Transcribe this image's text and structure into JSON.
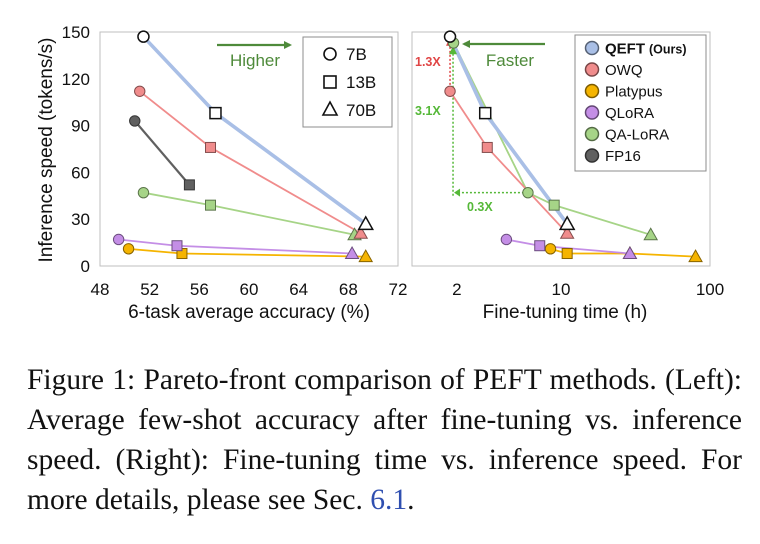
{
  "chart_data": [
    {
      "type": "scatter",
      "panel": "left",
      "xlabel": "6-task average accuracy (%)",
      "ylabel": "Inference speed (tokens/s)",
      "xlim": [
        48,
        72
      ],
      "ylim": [
        0,
        150
      ],
      "xticks": [
        "48",
        "52",
        "56",
        "60",
        "64",
        "68",
        "72"
      ],
      "yticks": [
        "0",
        "30",
        "60",
        "90",
        "120",
        "150"
      ],
      "series": [
        {
          "key": "QEFT",
          "color": "#a9bfe6",
          "points": [
            [
              51.5,
              147,
              "7B"
            ],
            [
              57.3,
              98,
              "13B"
            ],
            [
              69.4,
              27,
              "70B"
            ]
          ]
        },
        {
          "key": "OWQ",
          "color": "#f08c8c",
          "points": [
            [
              51.2,
              112,
              "7B"
            ],
            [
              56.9,
              76,
              "13B"
            ],
            [
              69.0,
              21,
              "70B"
            ]
          ]
        },
        {
          "key": "FP16",
          "color": "#606060",
          "points": [
            [
              50.8,
              93,
              "7B"
            ],
            [
              55.2,
              52,
              "13B"
            ]
          ]
        },
        {
          "key": "QA-LoRA",
          "color": "#a6d487",
          "points": [
            [
              51.5,
              47,
              "7B"
            ],
            [
              56.9,
              39,
              "13B"
            ],
            [
              68.5,
              20,
              "70B"
            ]
          ]
        },
        {
          "key": "QLoRA",
          "color": "#c48ee6",
          "points": [
            [
              49.5,
              17,
              "7B"
            ],
            [
              54.2,
              13,
              "13B"
            ],
            [
              68.3,
              8,
              "70B"
            ]
          ]
        },
        {
          "key": "Platypus",
          "color": "#f5b400",
          "points": [
            [
              50.3,
              11,
              "7B"
            ],
            [
              54.6,
              8,
              "13B"
            ],
            [
              69.4,
              6,
              "70B"
            ]
          ]
        }
      ],
      "annotations": [
        {
          "text": "Higher",
          "color": "#4e8a3a"
        }
      ],
      "size_legend": [
        {
          "marker": "circle",
          "label": "7B"
        },
        {
          "marker": "square",
          "label": "13B"
        },
        {
          "marker": "triangle",
          "label": "70B"
        }
      ]
    },
    {
      "type": "scatter",
      "panel": "right",
      "xlabel": "Fine-tuning time (h)",
      "xscale": "log",
      "xlim": [
        1,
        100
      ],
      "ylim": [
        0,
        150
      ],
      "xticks": [
        {
          "v": 2,
          "label": "2"
        },
        {
          "v": 10,
          "label": "10"
        },
        {
          "v": 100,
          "label": "100"
        }
      ],
      "series": [
        {
          "key": "QEFT",
          "color": "#a9bfe6",
          "points": [
            [
              1.8,
              147,
              "7B"
            ],
            [
              3.1,
              98,
              "13B"
            ],
            [
              11,
              27,
              "70B"
            ]
          ]
        },
        {
          "key": "OWQ",
          "color": "#f08c8c",
          "points": [
            [
              1.8,
              112,
              "7B"
            ],
            [
              3.2,
              76,
              "13B"
            ],
            [
              11,
              21,
              "70B"
            ]
          ]
        },
        {
          "key": "QA-LoRA",
          "color": "#a6d487",
          "points": [
            [
              1.9,
              143,
              "7B"
            ],
            [
              6,
              47,
              "7B"
            ],
            [
              9,
              39,
              "13B"
            ],
            [
              40,
              20,
              "70B"
            ]
          ]
        },
        {
          "key": "QLoRA",
          "color": "#c48ee6",
          "points": [
            [
              4.3,
              17,
              "7B"
            ],
            [
              7.2,
              13,
              "13B"
            ],
            [
              29,
              8,
              "70B"
            ]
          ]
        },
        {
          "key": "Platypus",
          "color": "#f5b400",
          "points": [
            [
              8.5,
              11,
              "7B"
            ],
            [
              11,
              8,
              "13B"
            ],
            [
              29,
              8,
              "70B"
            ],
            [
              80,
              6,
              "70B"
            ]
          ]
        }
      ],
      "annotations": [
        {
          "text": "Faster",
          "color": "#4e8a3a"
        },
        {
          "text": "1.3X",
          "color": "#e04545"
        },
        {
          "text": "3.1X",
          "color": "#55b838"
        },
        {
          "text": "0.3X",
          "color": "#55b838"
        }
      ],
      "legend": [
        {
          "key": "QEFT",
          "label": "QEFT",
          "suffix": "(Ours)",
          "color": "#a9bfe6"
        },
        {
          "key": "OWQ",
          "label": "OWQ",
          "color": "#f08c8c"
        },
        {
          "key": "Platypus",
          "label": "Platypus",
          "color": "#f5b400"
        },
        {
          "key": "QLoRA",
          "label": "QLoRA",
          "color": "#c48ee6"
        },
        {
          "key": "QA-LoRA",
          "label": "QA-LoRA",
          "color": "#a6d487"
        },
        {
          "key": "FP16",
          "label": "FP16",
          "color": "#606060"
        }
      ]
    }
  ],
  "caption": {
    "text_before": "Figure 1: Pareto-front comparison of PEFT methods. (Left): Average few-shot accuracy after fine-tuning vs. inference speed. (Right): Fine-tuning time vs. inference speed. For more details, please see Sec. ",
    "ref": "6.1",
    "text_after": "."
  }
}
